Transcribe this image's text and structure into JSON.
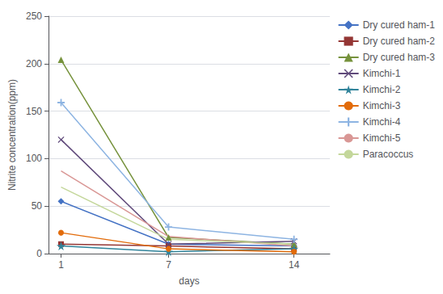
{
  "chart_data": {
    "type": "line",
    "x": [
      1,
      7,
      14
    ],
    "series": [
      {
        "name": "Dry cured ham-1",
        "values": [
          55,
          10,
          8
        ],
        "color": "#4472C4",
        "marker": "diamond"
      },
      {
        "name": "Dry cured ham-2",
        "values": [
          10,
          8,
          5
        ],
        "color": "#943634",
        "marker": "square"
      },
      {
        "name": "Dry cured ham-3",
        "values": [
          204,
          17,
          10
        ],
        "color": "#76923C",
        "marker": "triangle"
      },
      {
        "name": "Kimchi-1",
        "values": [
          120,
          10,
          13
        ],
        "color": "#5F497A",
        "marker": "x"
      },
      {
        "name": "Kimchi-2",
        "values": [
          8,
          2,
          5
        ],
        "color": "#31849B",
        "marker": "star"
      },
      {
        "name": "Kimchi-3",
        "values": [
          22,
          5,
          2
        ],
        "color": "#E26B0A",
        "marker": "circle"
      },
      {
        "name": "Kimchi-4",
        "values": [
          159,
          28,
          15
        ],
        "color": "#8DB4E2",
        "marker": "plus"
      },
      {
        "name": "Kimchi-5",
        "values": [
          87,
          18,
          8
        ],
        "color": "#D99795",
        "marker": "none"
      },
      {
        "name": "Paracoccus",
        "values": [
          70,
          15,
          10
        ],
        "color": "#C4D79B",
        "marker": "none"
      }
    ],
    "xlabel": "days",
    "ylabel": "Nitrite concentration(ppm)",
    "xlim": [
      0.3,
      16
    ],
    "ylim": [
      0,
      250
    ],
    "xticks": [
      1,
      7,
      14
    ],
    "yticks": [
      0,
      50,
      100,
      150,
      200,
      250
    ],
    "grid": true,
    "legend": "right"
  }
}
